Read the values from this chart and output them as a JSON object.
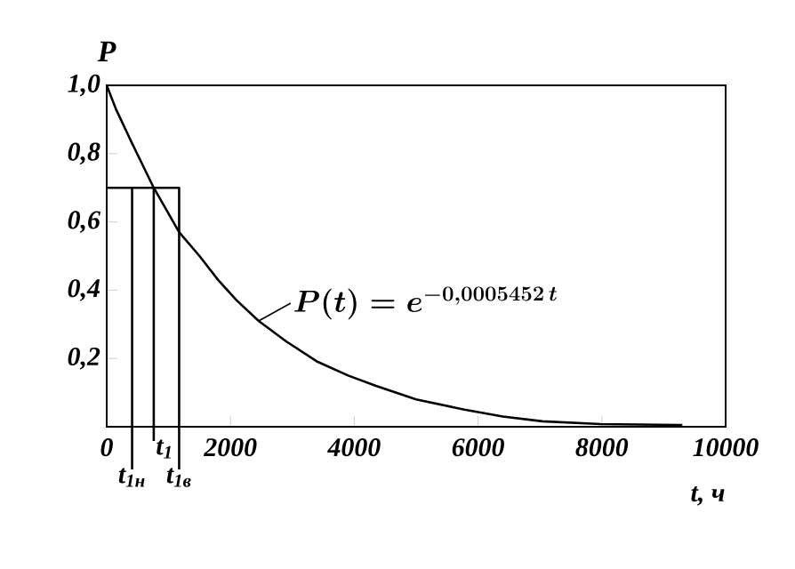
{
  "chart_data": {
    "type": "line",
    "xlabel": "t, ч",
    "ylabel": "P",
    "series": [
      {
        "x": [
          0,
          150,
          410,
          760,
          1170,
          1500,
          1800,
          2100,
          2455,
          2900,
          3410,
          3900,
          4350,
          5000,
          5780,
          6400,
          7040,
          7980,
          9300
        ],
        "values": [
          1,
          0.93,
          0.83,
          0.7,
          0.57,
          0.5,
          0.43,
          0.37,
          0.31,
          0.25,
          0.19,
          0.15,
          0.12,
          0.08,
          0.05,
          0.03,
          0.016,
          0.008,
          0.005
        ],
        "color": "#000000"
      },
      {
        "x": [
          0,
          1170,
          1170,
          null,
          410,
          410,
          null,
          760,
          760
        ],
        "values": [
          0.7,
          0.7,
          0,
          null,
          0,
          0.7,
          null,
          0,
          0.7
        ],
        "color": "#000000"
      }
    ],
    "xlim": [
      0,
      10000
    ],
    "ylim": [
      0,
      1
    ],
    "xticks": [
      0,
      2000,
      4000,
      6000,
      8000,
      10000
    ],
    "yticks": [
      {
        "value": 0.2,
        "label": "0,2"
      },
      {
        "value": 0.4,
        "label": "0,4"
      },
      {
        "value": 0.6,
        "label": "0,6"
      },
      {
        "value": 0.8,
        "label": "0,8"
      },
      {
        "value": 1,
        "label": "1,0"
      }
    ],
    "annotations": [
      {
        "text": "t$_{1н}$",
        "x": 410,
        "y": 0
      },
      {
        "text": "t$_{1}$",
        "x": 760,
        "y": 0
      },
      {
        "text": "t$_{1в}$",
        "x": 1170,
        "y": 0
      },
      {
        "text": "\\boldsymbol{P(t)=e^{-0{,}0005452\\,t}}",
        "x": 2455,
        "y": 0.31
      }
    ],
    "grid": false,
    "marker": "none",
    "line_style": "solid"
  }
}
